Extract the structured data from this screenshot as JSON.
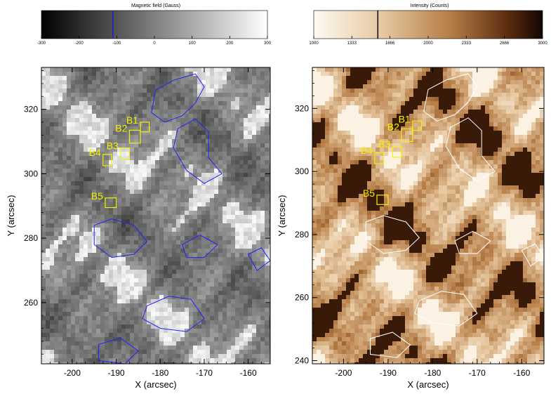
{
  "chart_data": [
    {
      "type": "heatmap",
      "colorbar": {
        "title": "Magnetic field (Gauss)",
        "range": [
          -300,
          300
        ],
        "ticks": [
          -300,
          -200,
          -100,
          0,
          100,
          200,
          300
        ],
        "colormap": "grayscale",
        "marker_value": -110,
        "marker_color": "#1a1ad6"
      },
      "xlabel": "X (arcsec)",
      "ylabel": "Y (arcsec)",
      "xlim": [
        -207,
        -155
      ],
      "ylim": [
        241,
        333
      ],
      "xticks": [
        -200,
        -190,
        -180,
        -170,
        -160
      ],
      "yticks": [
        260,
        280,
        300,
        320
      ],
      "contour_color": "#2222ff",
      "boxes": [
        {
          "label": "B1",
          "x": [
            -184.5,
            -182.5
          ],
          "y": [
            313,
            316
          ]
        },
        {
          "label": "B2",
          "x": [
            -187,
            -184.5
          ],
          "y": [
            309.5,
            313.5
          ]
        },
        {
          "label": "B3",
          "x": [
            -189,
            -187
          ],
          "y": [
            304.5,
            308
          ]
        },
        {
          "label": "B4",
          "x": [
            -193,
            -191
          ],
          "y": [
            302.5,
            306
          ]
        },
        {
          "label": "B5",
          "x": [
            -192.5,
            -190
          ],
          "y": [
            289.5,
            292.5
          ]
        }
      ]
    },
    {
      "type": "heatmap",
      "colorbar": {
        "title": "Intensity (Counts)",
        "range": [
          1000,
          3000
        ],
        "ticks": [
          1000,
          1333,
          1666,
          2000,
          2333,
          2666,
          3000
        ],
        "colormap": "brown",
        "marker_value": 1560,
        "marker_color": "#000000"
      },
      "xlabel": "X (arcsec)",
      "ylabel": "Y (arcsec)",
      "xlim": [
        -207,
        -155
      ],
      "ylim": [
        239,
        333
      ],
      "xticks": [
        -200,
        -190,
        -180,
        -170,
        -160
      ],
      "yticks": [
        240,
        260,
        280,
        300,
        320
      ],
      "contour_color": "#ffffff",
      "boxes": [
        {
          "label": "B1",
          "x": [
            -184.5,
            -182.5
          ],
          "y": [
            313,
            316
          ]
        },
        {
          "label": "B2",
          "x": [
            -187,
            -184.5
          ],
          "y": [
            309.5,
            313.5
          ]
        },
        {
          "label": "B3",
          "x": [
            -189,
            -187
          ],
          "y": [
            304.5,
            308
          ]
        },
        {
          "label": "B4",
          "x": [
            -193,
            -191
          ],
          "y": [
            302.5,
            306
          ]
        },
        {
          "label": "B5",
          "x": [
            -192.5,
            -190
          ],
          "y": [
            289.5,
            292.5
          ]
        }
      ]
    }
  ],
  "colors": {
    "box": "#f2f200",
    "gray_bg": "#8a8a8a",
    "brown_dark": "#3a1a08",
    "brown_mid": "#b07a45",
    "brown_light": "#fbf3e4"
  }
}
